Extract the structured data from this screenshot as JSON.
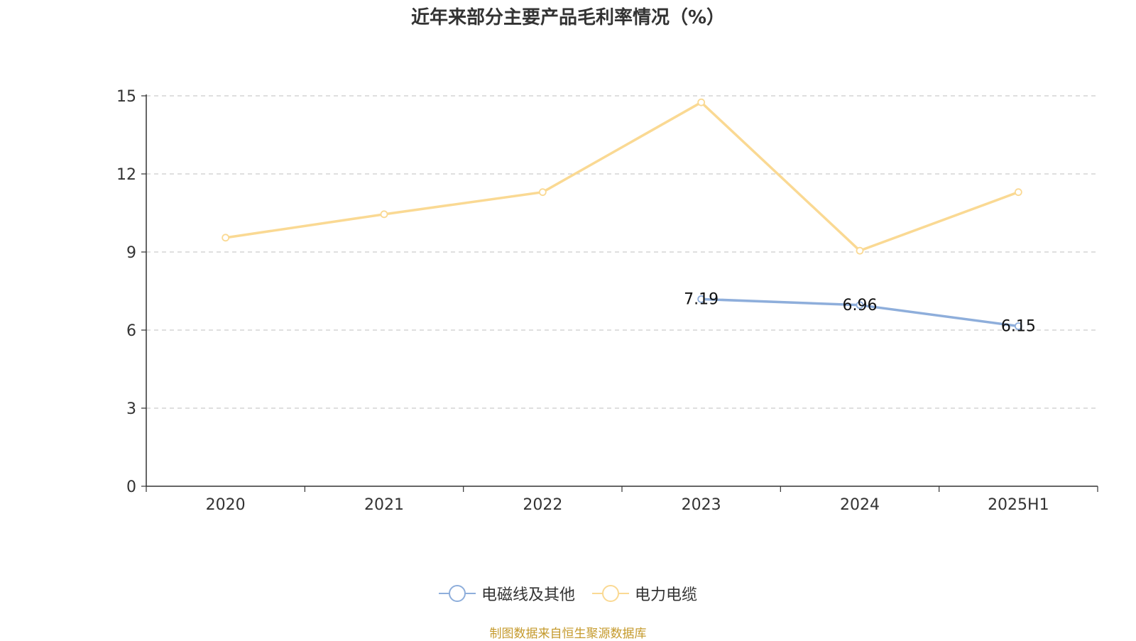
{
  "chart_data": {
    "type": "line",
    "title": "近年来部分主要产品毛利率情况（%）",
    "categories": [
      "2020",
      "2021",
      "2022",
      "2023",
      "2024",
      "2025H1"
    ],
    "ylim": [
      0,
      15
    ],
    "yticks": [
      0,
      3,
      6,
      9,
      12,
      15
    ],
    "grid": true,
    "legend_position": "bottom",
    "series": [
      {
        "name": "电磁线及其他",
        "color": "#8eaedb",
        "values": [
          null,
          null,
          null,
          7.19,
          6.96,
          6.15
        ],
        "labels": [
          "",
          "",
          "",
          "7.19",
          "6.96",
          "6.15"
        ]
      },
      {
        "name": "电力电缆",
        "color": "#fad993",
        "values": [
          9.55,
          10.45,
          11.3,
          14.75,
          9.05,
          11.3
        ],
        "labels": [
          "",
          "",
          "",
          "",
          "",
          ""
        ]
      }
    ]
  },
  "source": "制图数据来自恒生聚源数据库"
}
